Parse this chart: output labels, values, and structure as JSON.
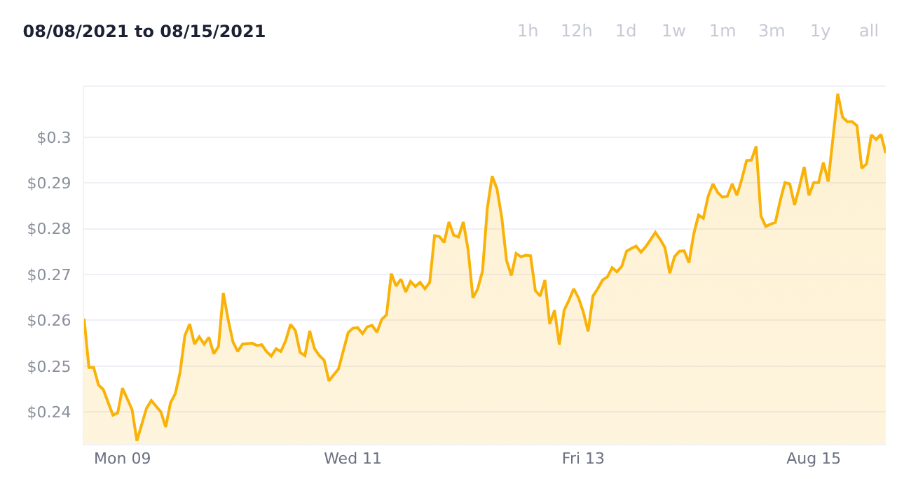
{
  "chart_data": {
    "type": "area",
    "title": "08/08/2021 to 08/15/2021",
    "annotations": [
      "1h",
      "12h",
      "1d",
      "1w",
      "1m",
      "3m",
      "1y",
      "all"
    ],
    "x": [
      "2021-08-08T16:00",
      "2021-08-08T17:00",
      "2021-08-08T18:00",
      "2021-08-08T19:00",
      "2021-08-08T20:00",
      "2021-08-08T22:00",
      "2021-08-08T23:00",
      "2021-08-09T00:00",
      "2021-08-09T02:00",
      "2021-08-09T03:00",
      "2021-08-09T05:00",
      "2021-08-09T06:00",
      "2021-08-09T08:00",
      "2021-08-09T09:00",
      "2021-08-09T10:00",
      "2021-08-09T11:00",
      "2021-08-09T12:00",
      "2021-08-09T13:00",
      "2021-08-09T14:00",
      "2021-08-09T15:00",
      "2021-08-09T16:00",
      "2021-08-09T17:00",
      "2021-08-09T18:00",
      "2021-08-09T19:00",
      "2021-08-09T20:00",
      "2021-08-09T21:00",
      "2021-08-09T22:00",
      "2021-08-09T23:00",
      "2021-08-10T00:00",
      "2021-08-10T01:00",
      "2021-08-10T03:00",
      "2021-08-10T04:00",
      "2021-08-10T05:00",
      "2021-08-10T06:00",
      "2021-08-10T07:00",
      "2021-08-10T08:00",
      "2021-08-10T09:00",
      "2021-08-10T10:00",
      "2021-08-10T11:00",
      "2021-08-10T12:00",
      "2021-08-10T13:00",
      "2021-08-10T14:00",
      "2021-08-10T15:00",
      "2021-08-10T16:00",
      "2021-08-10T17:00",
      "2021-08-10T18:00",
      "2021-08-10T19:00",
      "2021-08-10T21:00",
      "2021-08-10T23:00",
      "2021-08-11T00:00",
      "2021-08-11T01:00",
      "2021-08-11T02:00",
      "2021-08-11T03:00",
      "2021-08-11T04:00",
      "2021-08-11T05:00",
      "2021-08-11T06:00",
      "2021-08-11T07:00",
      "2021-08-11T08:00",
      "2021-08-11T09:00",
      "2021-08-11T10:00",
      "2021-08-11T11:00",
      "2021-08-11T12:00",
      "2021-08-11T13:00",
      "2021-08-11T14:00",
      "2021-08-11T15:00",
      "2021-08-11T16:00",
      "2021-08-11T17:00",
      "2021-08-11T18:00",
      "2021-08-11T19:00",
      "2021-08-11T20:00",
      "2021-08-11T21:00",
      "2021-08-11T22:00",
      "2021-08-11T23:00",
      "2021-08-12T00:00",
      "2021-08-12T01:00",
      "2021-08-12T02:00",
      "2021-08-12T03:00",
      "2021-08-12T04:00",
      "2021-08-12T05:00",
      "2021-08-12T06:00",
      "2021-08-12T07:00",
      "2021-08-12T08:00",
      "2021-08-12T09:00",
      "2021-08-12T10:00",
      "2021-08-12T11:00",
      "2021-08-12T12:00",
      "2021-08-12T13:00",
      "2021-08-12T14:00",
      "2021-08-12T15:00",
      "2021-08-12T16:00",
      "2021-08-12T17:00",
      "2021-08-12T18:00",
      "2021-08-12T19:00",
      "2021-08-12T20:00",
      "2021-08-12T21:00",
      "2021-08-12T22:00",
      "2021-08-12T23:00",
      "2021-08-13T00:00",
      "2021-08-13T01:00",
      "2021-08-13T02:00",
      "2021-08-13T03:00",
      "2021-08-13T04:00",
      "2021-08-13T05:00",
      "2021-08-13T06:00",
      "2021-08-13T07:00",
      "2021-08-13T08:00",
      "2021-08-13T09:00",
      "2021-08-13T10:00",
      "2021-08-13T11:00",
      "2021-08-13T12:00",
      "2021-08-13T13:00",
      "2021-08-13T14:00",
      "2021-08-13T15:00",
      "2021-08-13T16:00",
      "2021-08-13T17:00",
      "2021-08-13T18:00",
      "2021-08-13T19:00",
      "2021-08-13T20:00",
      "2021-08-13T21:00",
      "2021-08-13T22:00",
      "2021-08-13T23:00",
      "2021-08-14T00:00",
      "2021-08-14T01:00",
      "2021-08-14T02:00",
      "2021-08-14T03:00",
      "2021-08-14T04:00",
      "2021-08-14T05:00",
      "2021-08-14T06:00",
      "2021-08-14T07:00",
      "2021-08-14T08:00",
      "2021-08-14T09:00",
      "2021-08-14T10:00",
      "2021-08-14T11:00",
      "2021-08-14T12:00",
      "2021-08-14T13:00",
      "2021-08-14T14:00",
      "2021-08-14T15:00",
      "2021-08-14T16:00",
      "2021-08-14T17:00",
      "2021-08-14T18:00",
      "2021-08-14T19:00",
      "2021-08-14T20:00",
      "2021-08-14T21:00",
      "2021-08-14T22:00",
      "2021-08-14T23:00",
      "2021-08-15T00:00",
      "2021-08-15T01:00",
      "2021-08-15T02:00",
      "2021-08-15T03:00",
      "2021-08-15T04:00",
      "2021-08-15T05:00",
      "2021-08-15T06:00",
      "2021-08-15T07:00",
      "2021-08-15T08:00",
      "2021-08-15T09:00",
      "2021-08-15T10:00",
      "2021-08-15T11:00",
      "2021-08-15T12:00",
      "2021-08-15T13:00",
      "2021-08-15T14:00",
      "2021-08-15T15:00"
    ],
    "series": [
      {
        "color": "#f9b208",
        "values": [
          0.2604,
          0.2497,
          0.2497,
          0.2459,
          0.2449,
          0.2393,
          0.2398,
          0.2452,
          0.2405,
          0.2337,
          0.2408,
          0.2425,
          0.24,
          0.2367,
          0.242,
          0.244,
          0.2487,
          0.2567,
          0.2592,
          0.2548,
          0.2564,
          0.2548,
          0.2563,
          0.2527,
          0.2543,
          0.266,
          0.2602,
          0.2553,
          0.2532,
          0.2548,
          0.255,
          0.2545,
          0.2547,
          0.2532,
          0.2522,
          0.2538,
          0.2532,
          0.2556,
          0.2591,
          0.2578,
          0.253,
          0.2523,
          0.2577,
          0.2538,
          0.2523,
          0.2513,
          0.2468,
          0.2494,
          0.2573,
          0.2583,
          0.2584,
          0.2571,
          0.2586,
          0.2589,
          0.2574,
          0.2602,
          0.2612,
          0.2702,
          0.2675,
          0.269,
          0.2662,
          0.2685,
          0.2674,
          0.2683,
          0.2669,
          0.2683,
          0.2785,
          0.2783,
          0.277,
          0.2815,
          0.2786,
          0.2782,
          0.2815,
          0.2754,
          0.2649,
          0.2669,
          0.2708,
          0.2845,
          0.2915,
          0.2888,
          0.2825,
          0.2731,
          0.2698,
          0.2746,
          0.2739,
          0.2742,
          0.2741,
          0.2665,
          0.2653,
          0.2688,
          0.2592,
          0.2622,
          0.2547,
          0.2622,
          0.2644,
          0.2669,
          0.2649,
          0.2618,
          0.2576,
          0.2653,
          0.2669,
          0.2688,
          0.2695,
          0.2715,
          0.2706,
          0.2718,
          0.2751,
          0.2757,
          0.2762,
          0.2749,
          0.2761,
          0.2776,
          0.2792,
          0.2777,
          0.2759,
          0.2703,
          0.2739,
          0.2751,
          0.2752,
          0.2726,
          0.2789,
          0.283,
          0.2823,
          0.2871,
          0.2898,
          0.2879,
          0.2869,
          0.2871,
          0.2898,
          0.2873,
          0.2908,
          0.2949,
          0.295,
          0.298,
          0.2828,
          0.2805,
          0.281,
          0.2814,
          0.2861,
          0.2901,
          0.2898,
          0.2852,
          0.2891,
          0.2935,
          0.2873,
          0.2901,
          0.2901,
          0.2945,
          0.2903,
          0.2998,
          0.3095,
          0.3044,
          0.3034,
          0.3034,
          0.3025,
          0.2932,
          0.2942,
          0.3005,
          0.2995,
          0.3006,
          0.2965
        ]
      }
    ],
    "xlim": [
      "2021-08-08T16:00",
      "2021-08-15T15:00"
    ],
    "xticks": [
      {
        "value": "2021-08-09",
        "label": "Mon 09"
      },
      {
        "value": "2021-08-11",
        "label": "Wed 11"
      },
      {
        "value": "2021-08-13",
        "label": "Fri 13"
      },
      {
        "value": "2021-08-15",
        "label": "Aug 15"
      }
    ],
    "ylim": [
      0.233,
      0.311
    ],
    "yticks": [
      {
        "value": 0.24,
        "label": "$0.24"
      },
      {
        "value": 0.25,
        "label": "$0.25"
      },
      {
        "value": 0.26,
        "label": "$0.26"
      },
      {
        "value": 0.27,
        "label": "$0.27"
      },
      {
        "value": 0.28,
        "label": "$0.28"
      },
      {
        "value": 0.29,
        "label": "$0.29"
      },
      {
        "value": 0.3,
        "label": "$0.3"
      }
    ],
    "grid": "y",
    "marker": "none",
    "line_style": "solid"
  }
}
